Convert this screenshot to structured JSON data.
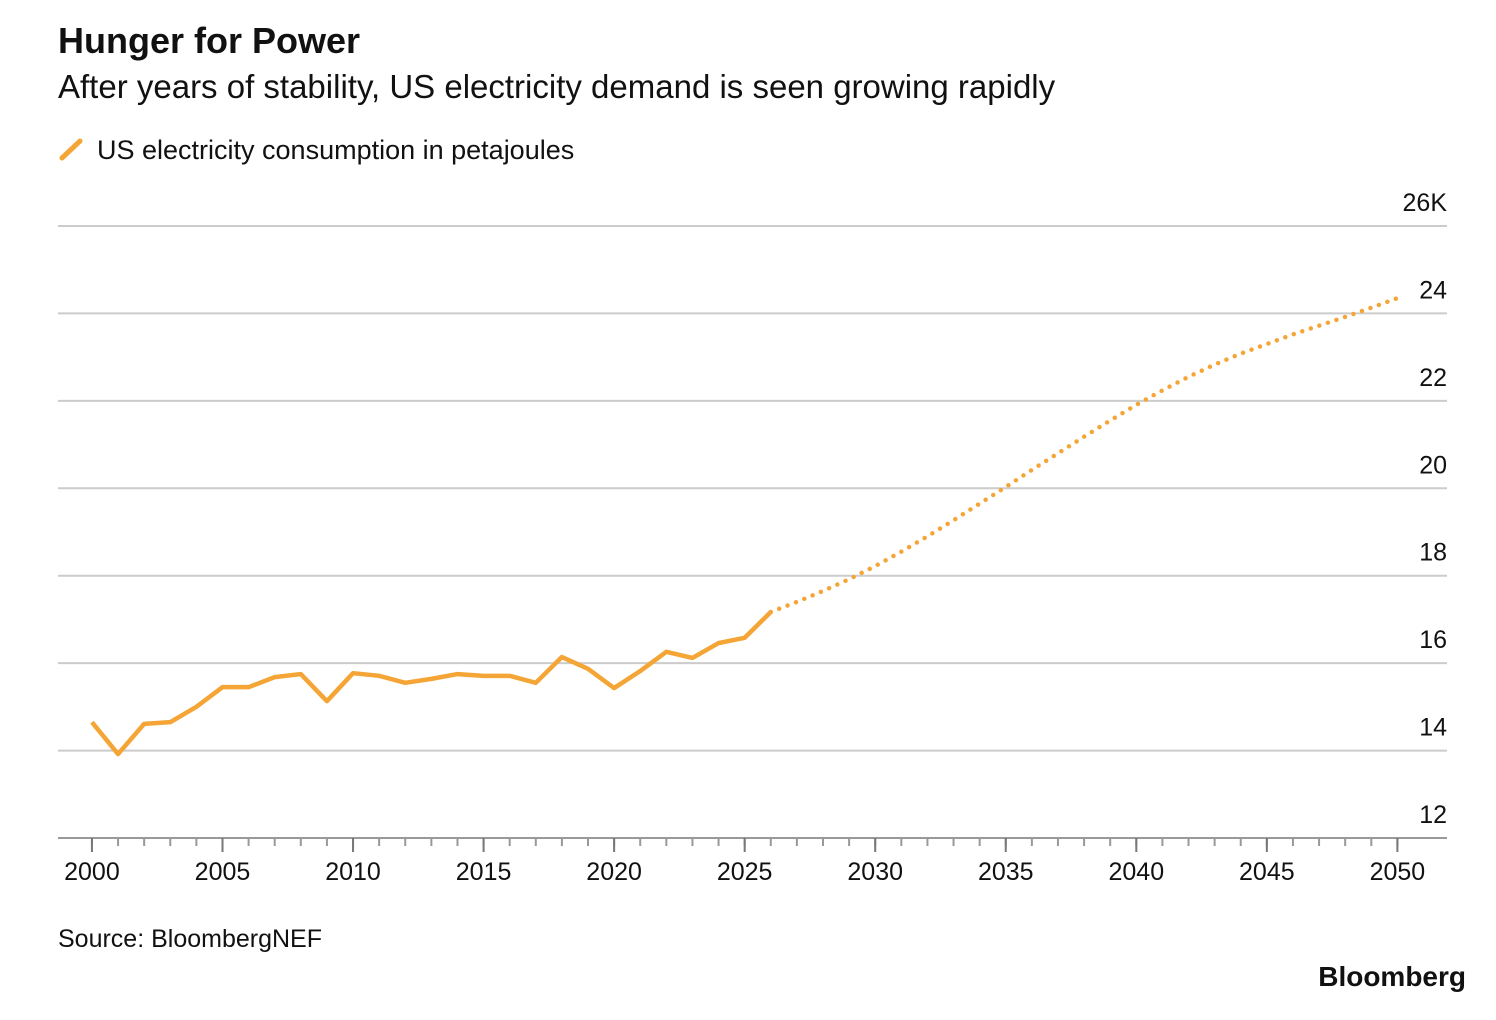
{
  "chart_data": {
    "type": "line",
    "title": "Hunger for Power",
    "subtitle": "After years of stability, US electricity demand is seen growing rapidly",
    "source": "Source: BloombergNEF",
    "brand": "Bloomberg",
    "x": [
      2000,
      2001,
      2002,
      2003,
      2004,
      2005,
      2006,
      2007,
      2008,
      2009,
      2010,
      2011,
      2012,
      2013,
      2014,
      2015,
      2016,
      2017,
      2018,
      2019,
      2020,
      2021,
      2022,
      2023,
      2024,
      2025,
      2026,
      2027,
      2028,
      2029,
      2030,
      2031,
      2032,
      2033,
      2034,
      2035,
      2036,
      2037,
      2038,
      2039,
      2040,
      2041,
      2042,
      2043,
      2044,
      2045,
      2046,
      2047,
      2048,
      2049,
      2050
    ],
    "series": [
      {
        "name": "US electricity consumption in petajoules",
        "color": "#f4a536",
        "values": [
          14.65,
          13.92,
          14.61,
          14.65,
          15.0,
          15.45,
          15.45,
          15.68,
          15.75,
          15.13,
          15.77,
          15.71,
          15.55,
          15.64,
          15.75,
          15.71,
          15.71,
          15.55,
          16.14,
          15.87,
          15.43,
          15.82,
          16.26,
          16.12,
          16.46,
          16.58,
          17.17,
          17.4,
          17.65,
          17.92,
          18.22,
          18.55,
          18.9,
          19.27,
          19.65,
          20.03,
          20.42,
          20.8,
          21.18,
          21.55,
          21.91,
          22.24,
          22.55,
          22.83,
          23.08,
          23.3,
          23.52,
          23.72,
          23.92,
          24.13,
          24.35
        ]
      }
    ],
    "projected_from": 2026,
    "xlim": [
      1998.7,
      2051.9
    ],
    "xticks": [
      2000,
      2005,
      2010,
      2015,
      2020,
      2025,
      2030,
      2035,
      2040,
      2045,
      2050
    ],
    "ylim": [
      12,
      26
    ],
    "yticks": [
      12,
      14,
      16,
      18,
      20,
      22,
      24,
      {
        "value": 26,
        "label": "26K"
      }
    ],
    "grid": true
  }
}
